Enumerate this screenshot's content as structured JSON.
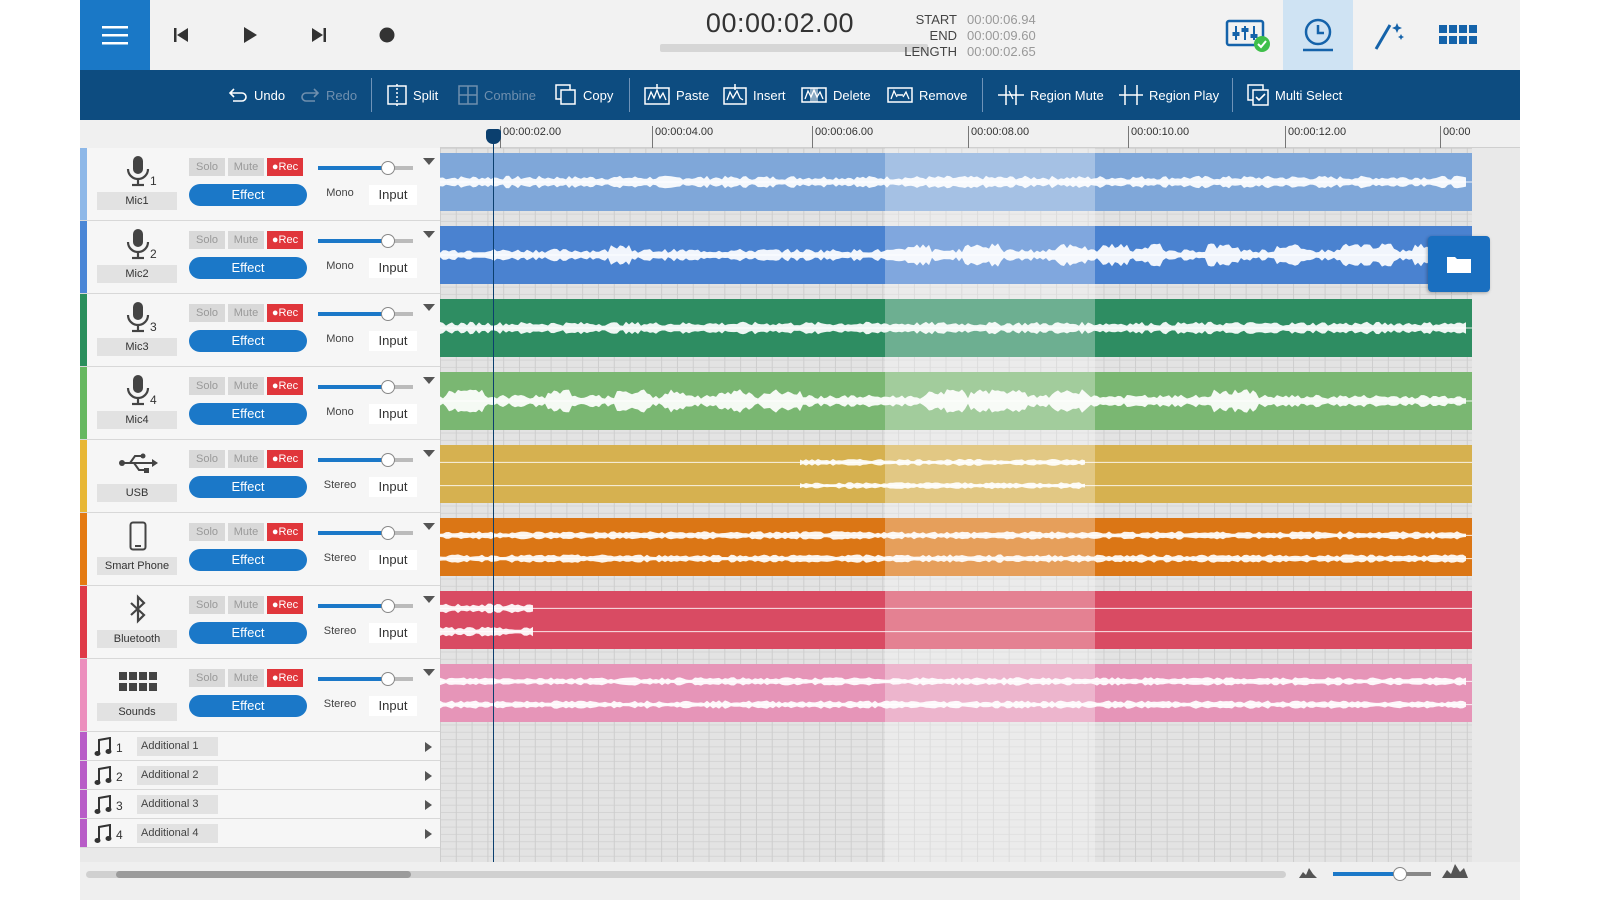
{
  "transport": {
    "time": "00:00:02.00",
    "start_label": "START",
    "start_value": "00:00:06.94",
    "end_label": "END",
    "end_value": "00:00:09.60",
    "length_label": "LENGTH",
    "length_value": "00:00:02.65"
  },
  "toolbar": {
    "undo": "Undo",
    "redo": "Redo",
    "split": "Split",
    "combine": "Combine",
    "copy": "Copy",
    "paste": "Paste",
    "insert": "Insert",
    "delete": "Delete",
    "remove": "Remove",
    "region_mute": "Region Mute",
    "region_play": "Region Play",
    "multi_select": "Multi Select"
  },
  "ruler": {
    "ticks": [
      "00:00:02.00",
      "00:00:04.00",
      "00:00:06.00",
      "00:00:08.00",
      "00:00:10.00",
      "00:00:12.00",
      "00:00"
    ]
  },
  "controls": {
    "solo": "Solo",
    "mute": "Mute",
    "rec": "●Rec",
    "effect": "Effect",
    "input": "Input"
  },
  "tracks": [
    {
      "name": "Mic1",
      "number": "1",
      "icon": "microphone-icon",
      "channel": "Mono",
      "color": "#7fa7d9",
      "stripe": "#8eb8e8"
    },
    {
      "name": "Mic2",
      "number": "2",
      "icon": "microphone-icon",
      "channel": "Mono",
      "color": "#4a82d0",
      "stripe": "#4a86d6"
    },
    {
      "name": "Mic3",
      "number": "3",
      "icon": "microphone-icon",
      "channel": "Mono",
      "color": "#2e8d62",
      "stripe": "#2a8f5c"
    },
    {
      "name": "Mic4",
      "number": "4",
      "icon": "microphone-icon",
      "channel": "Mono",
      "color": "#7ab772",
      "stripe": "#66b860"
    },
    {
      "name": "USB",
      "number": "",
      "icon": "usb-icon",
      "channel": "Stereo",
      "color": "#d6b150",
      "stripe": "#e8b735"
    },
    {
      "name": "Smart Phone",
      "number": "",
      "icon": "smartphone-icon",
      "channel": "Stereo",
      "color": "#db7615",
      "stripe": "#e47a12"
    },
    {
      "name": "Bluetooth",
      "number": "",
      "icon": "bluetooth-icon",
      "channel": "Stereo",
      "color": "#d94b63",
      "stripe": "#df3a48"
    },
    {
      "name": "Sounds",
      "number": "",
      "icon": "sounds-grid-icon",
      "channel": "Stereo",
      "color": "#e695b8",
      "stripe": "#ec8fbd"
    }
  ],
  "additional_tracks": [
    {
      "number": "1",
      "name": "Additional 1"
    },
    {
      "number": "2",
      "name": "Additional 2"
    },
    {
      "number": "3",
      "name": "Additional 3"
    },
    {
      "number": "4",
      "name": "Additional 4"
    }
  ],
  "colors": {
    "accent": "#1a78c6",
    "toolbar": "#0d4c80",
    "rec": "#e0363b"
  }
}
